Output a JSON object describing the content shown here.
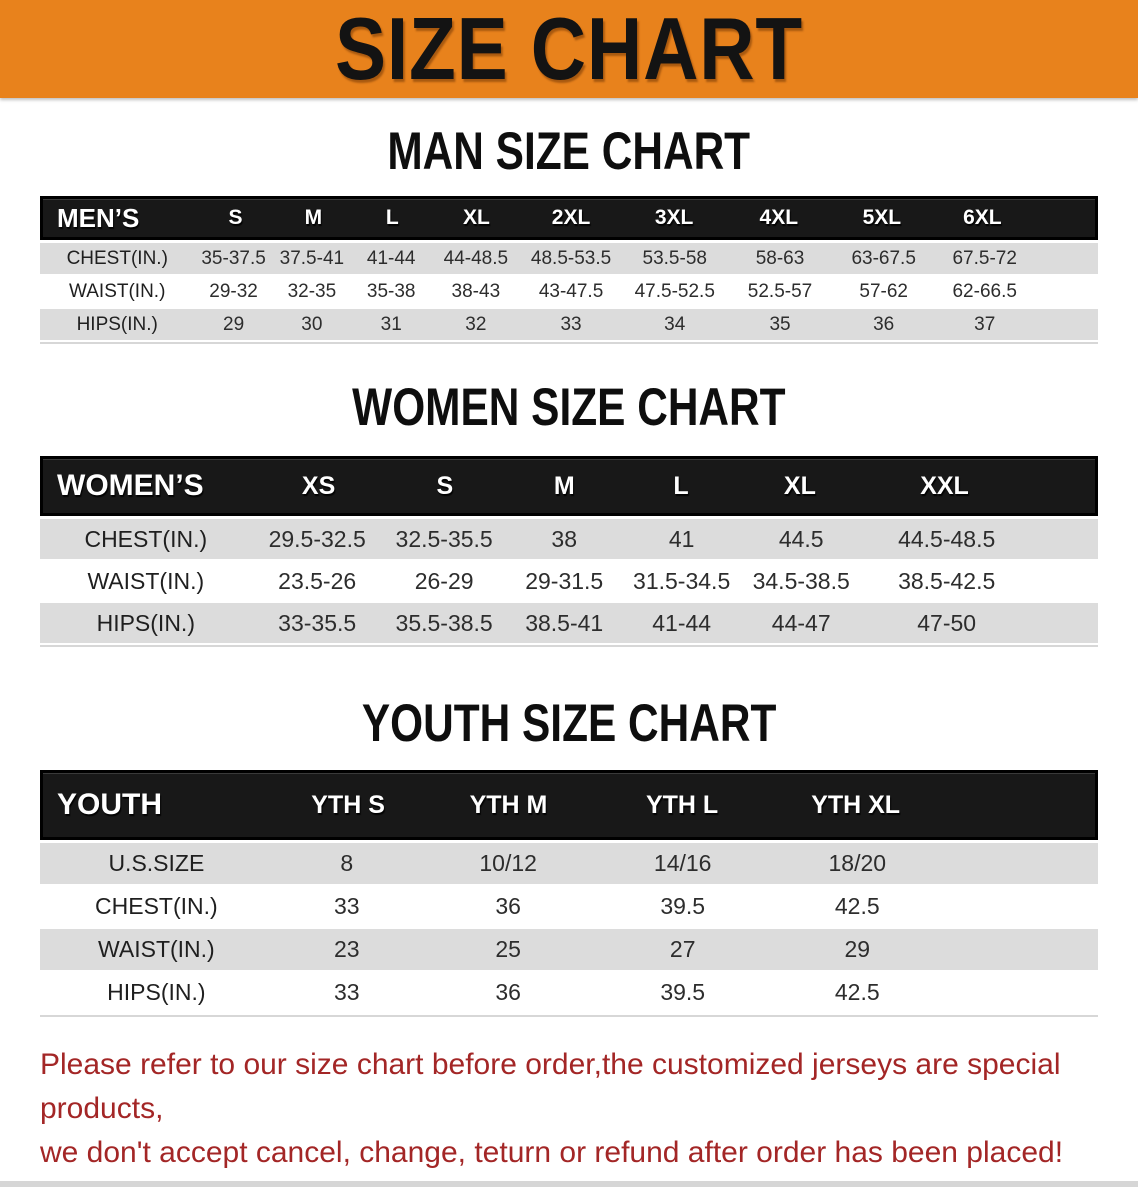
{
  "banner": {
    "title": "SIZE CHART"
  },
  "colors": {
    "banner_bg": "#E8821C",
    "table_header_bg": "#181818",
    "row_shaded_bg": "#DCDCDC",
    "disclaimer_text": "#A32626"
  },
  "sections": [
    {
      "id": "men",
      "heading": "MAN SIZE CHART",
      "header": [
        "MEN’S",
        "S",
        "M",
        "L",
        "XL",
        "2XL",
        "3XL",
        "4XL",
        "5XL",
        "6XL"
      ],
      "rows": [
        [
          "CHEST(IN.)",
          "35-37.5",
          "37.5-41",
          "41-44",
          "44-48.5",
          "48.5-53.5",
          "53.5-58",
          "58-63",
          "63-67.5",
          "67.5-72"
        ],
        [
          "WAIST(IN.)",
          "29-32",
          "32-35",
          "35-38",
          "38-43",
          "43-47.5",
          "47.5-52.5",
          "52.5-57",
          "57-62",
          "62-66.5"
        ],
        [
          "HIPS(IN.)",
          "29",
          "30",
          "31",
          "32",
          "33",
          "34",
          "35",
          "36",
          "37"
        ]
      ]
    },
    {
      "id": "women",
      "heading": "WOMEN SIZE CHART",
      "header": [
        "WOMEN’S",
        "XS",
        "S",
        "M",
        "L",
        "XL",
        "XXL"
      ],
      "rows": [
        [
          "CHEST(IN.)",
          "29.5-32.5",
          "32.5-35.5",
          "38",
          "41",
          "44.5",
          "44.5-48.5"
        ],
        [
          "WAIST(IN.)",
          "23.5-26",
          "26-29",
          "29-31.5",
          "31.5-34.5",
          "34.5-38.5",
          "38.5-42.5"
        ],
        [
          "HIPS(IN.)",
          "33-35.5",
          "35.5-38.5",
          "38.5-41",
          "41-44",
          "44-47",
          "47-50"
        ]
      ]
    },
    {
      "id": "youth",
      "heading": "YOUTH SIZE CHART",
      "header": [
        "YOUTH",
        "YTH S",
        "YTH M",
        "YTH L",
        "YTH XL"
      ],
      "rows": [
        [
          "U.S.SIZE",
          "8",
          "10/12",
          "14/16",
          "18/20"
        ],
        [
          "CHEST(IN.)",
          "33",
          "36",
          "39.5",
          "42.5"
        ],
        [
          "WAIST(IN.)",
          "23",
          "25",
          "27",
          "29"
        ],
        [
          "HIPS(IN.)",
          "33",
          "36",
          "39.5",
          "42.5"
        ]
      ]
    }
  ],
  "disclaimer": {
    "line1": "Please refer to our size chart before order,the customized jerseys are special products,",
    "line2": "we don't accept cancel, change, teturn or refund after order has been placed!"
  }
}
